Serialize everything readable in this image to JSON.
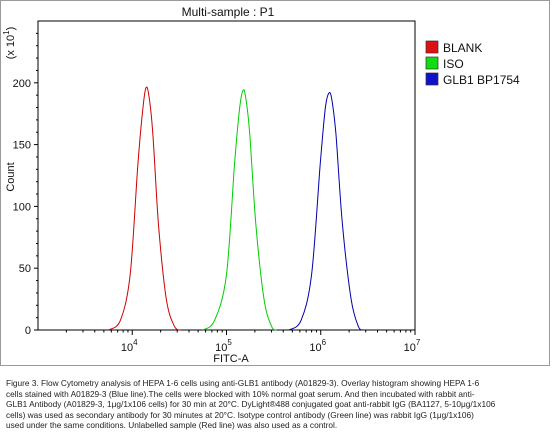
{
  "chart_data": {
    "type": "line",
    "title": "Multi-sample : P1",
    "xlabel": "FITC-A",
    "ylabel": "Count",
    "y_multiplier_label": "(x 10",
    "y_multiplier_exp": "1",
    "y_multiplier_close": ")",
    "x_scale": "log",
    "xlim": [
      1000,
      10000000
    ],
    "ylim": [
      0,
      250
    ],
    "y_ticks": [
      0,
      50,
      100,
      150,
      200
    ],
    "x_ticks": [
      {
        "value": 10000,
        "base": "10",
        "exp": "4"
      },
      {
        "value": 100000,
        "base": "10",
        "exp": "5"
      },
      {
        "value": 1000000,
        "base": "10",
        "exp": "6"
      },
      {
        "value": 10000000,
        "base": "10",
        "exp": "7"
      }
    ],
    "legend_position": "right",
    "series": [
      {
        "name": "BLANK",
        "color": "#cc0000",
        "fill": "#dd1111",
        "x": [
          5600,
          7500,
          9500,
          11500,
          13000,
          14000,
          15000,
          16500,
          19000,
          23000,
          28000,
          33000
        ],
        "y": [
          0,
          8,
          45,
          135,
          180,
          196,
          190,
          160,
          85,
          25,
          3,
          0
        ]
      },
      {
        "name": "ISO",
        "color": "#00cc00",
        "fill": "#11dd11",
        "x": [
          56000,
          75000,
          100000,
          122000,
          138000,
          150000,
          160000,
          176000,
          205000,
          250000,
          300000,
          340000
        ],
        "y": [
          0,
          8,
          45,
          135,
          180,
          194,
          188,
          160,
          85,
          25,
          3,
          0
        ]
      },
      {
        "name": "GLB1 BP1754",
        "color": "#0000aa",
        "fill": "#1111cc",
        "x": [
          460000,
          620000,
          800000,
          990000,
          1120000,
          1230000,
          1320000,
          1450000,
          1700000,
          2100000,
          2500000,
          2800000
        ],
        "y": [
          0,
          8,
          45,
          135,
          180,
          192,
          185,
          158,
          85,
          25,
          3,
          0
        ]
      }
    ]
  },
  "caption_lines": [
    "Figure 3. Flow Cytometry analysis of HEPA 1-6 cells using anti-GLB1 antibody (A01829-3).  Overlay histogram showing HEPA 1-6",
    "cells stained with A01829-3 (Blue line).The cells were blocked with 10% normal goat serum. And then incubated with rabbit anti-",
    "GLB1 Antibody (A01829-3, 1μg/1x106 cells) for 30 min at 20°C. DyLight®488 conjugated goat anti-rabbit IgG (BA1127, 5-10μg/1x106",
    "cells) was used as secondary antibody for 30 minutes at 20°C. Isotype control antibody (Green line) was rabbit IgG (1μg/1x106)",
    "used under the same conditions. Unlabelled sample (Red line) was also used as a control."
  ]
}
